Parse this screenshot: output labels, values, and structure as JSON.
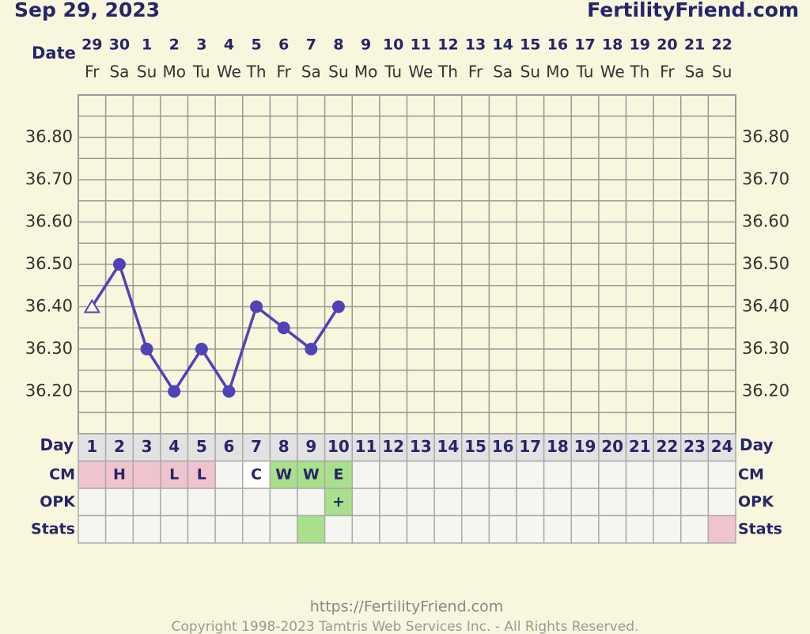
{
  "chart_data": {
    "type": "line",
    "title": "Sep 29, 2023",
    "brand": "FertilityFriend.com",
    "date_label": "Date",
    "dates": [
      29,
      30,
      1,
      2,
      3,
      4,
      5,
      6,
      7,
      8,
      9,
      10,
      11,
      12,
      13,
      14,
      15,
      16,
      17,
      18,
      19,
      20,
      21,
      22
    ],
    "weekdays": [
      "Fr",
      "Sa",
      "Su",
      "Mo",
      "Tu",
      "We",
      "Th",
      "Fr",
      "Sa",
      "Su",
      "Mo",
      "Tu",
      "We",
      "Th",
      "Fr",
      "Sa",
      "Su",
      "Mo",
      "Tu",
      "We",
      "Th",
      "Fr",
      "Sa",
      "Su"
    ],
    "values": [
      36.4,
      36.5,
      36.3,
      36.2,
      36.3,
      36.2,
      36.4,
      36.35,
      36.3,
      36.4,
      null,
      null,
      null,
      null,
      null,
      null,
      null,
      null,
      null,
      null,
      null,
      null,
      null,
      null
    ],
    "color": "#5242b8",
    "open_points": [
      0
    ],
    "ylim": [
      36.1,
      36.9
    ],
    "yticks": [
      {
        "value": 36.2,
        "label": "36.20"
      },
      {
        "value": 36.3,
        "label": "36.30"
      },
      {
        "value": 36.4,
        "label": "36.40"
      },
      {
        "value": 36.5,
        "label": "36.50"
      },
      {
        "value": 36.6,
        "label": "36.60"
      },
      {
        "value": 36.7,
        "label": "36.70"
      },
      {
        "value": 36.8,
        "label": "36.80"
      }
    ],
    "yminor": [
      36.15,
      36.25,
      36.35,
      36.45,
      36.55,
      36.65,
      36.75,
      36.85
    ],
    "grid": true,
    "day_label": "Day",
    "days": [
      1,
      2,
      3,
      4,
      5,
      6,
      7,
      8,
      9,
      10,
      11,
      12,
      13,
      14,
      15,
      16,
      17,
      18,
      19,
      20,
      21,
      22,
      23,
      24
    ],
    "cell_color": "#f6f6f1",
    "rows": [
      {
        "label": "CM",
        "cells": [
          null,
          "H",
          null,
          "L",
          "L",
          null,
          "C",
          "W",
          "W",
          "E",
          null,
          null,
          null,
          null,
          null,
          null,
          null,
          null,
          null,
          null,
          null,
          null,
          null,
          null
        ],
        "fills": [
          "#f0c4cf",
          "#f0c4cf",
          "#f0c4cf",
          "#f0c4cf",
          "#f0c4cf",
          null,
          "#ffffff",
          "#a8e08c",
          "#a8e08c",
          "#a8e08c",
          null,
          null,
          null,
          null,
          null,
          null,
          null,
          null,
          null,
          null,
          null,
          null,
          null,
          null
        ]
      },
      {
        "label": "OPK",
        "cells": [
          null,
          null,
          null,
          null,
          null,
          null,
          null,
          null,
          null,
          "+",
          null,
          null,
          null,
          null,
          null,
          null,
          null,
          null,
          null,
          null,
          null,
          null,
          null,
          null
        ],
        "fills": [
          null,
          null,
          null,
          null,
          null,
          null,
          null,
          null,
          null,
          "#a8e08c",
          null,
          null,
          null,
          null,
          null,
          null,
          null,
          null,
          null,
          null,
          null,
          null,
          null,
          null
        ]
      },
      {
        "label": "Stats",
        "cells": [
          null,
          null,
          null,
          null,
          null,
          null,
          null,
          null,
          null,
          null,
          null,
          null,
          null,
          null,
          null,
          null,
          null,
          null,
          null,
          null,
          null,
          null,
          null,
          null
        ],
        "fills": [
          null,
          null,
          null,
          null,
          null,
          null,
          null,
          null,
          "#a8e08c",
          null,
          null,
          null,
          null,
          null,
          null,
          null,
          null,
          null,
          null,
          null,
          null,
          null,
          null,
          "#f0c4cf"
        ]
      }
    ],
    "footer_url": "https://FertilityFriend.com",
    "copyright": "Copyright 1998-2023 Tamtris Web Services Inc. - All Rights Reserved."
  }
}
